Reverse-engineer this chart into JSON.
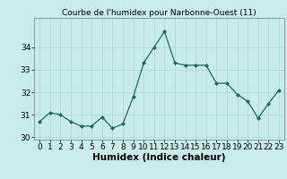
{
  "x": [
    0,
    1,
    2,
    3,
    4,
    5,
    6,
    7,
    8,
    9,
    10,
    11,
    12,
    13,
    14,
    15,
    16,
    17,
    18,
    19,
    20,
    21,
    22,
    23
  ],
  "y": [
    30.7,
    31.1,
    31.0,
    30.7,
    30.5,
    30.5,
    30.9,
    30.4,
    30.6,
    31.8,
    33.3,
    34.0,
    34.7,
    33.3,
    33.2,
    33.2,
    33.2,
    32.4,
    32.4,
    31.9,
    31.6,
    30.85,
    31.5,
    32.1
  ],
  "title": "Courbe de l'humidex pour Narbonne-Ouest (11)",
  "xlabel": "Humidex (Indice chaleur)",
  "ylabel": "",
  "bg_color": "#c8ecea",
  "grid_color": "#a8d8d5",
  "line_color": "#1a6b5a",
  "marker_color": "#1a6b5a",
  "ylim": [
    29.9,
    35.3
  ],
  "yticks": [
    30,
    31,
    32,
    33,
    34
  ],
  "xticks": [
    0,
    1,
    2,
    3,
    4,
    5,
    6,
    7,
    8,
    9,
    10,
    11,
    12,
    13,
    14,
    15,
    16,
    17,
    18,
    19,
    20,
    21,
    22,
    23
  ],
  "title_fontsize": 6.5,
  "axis_fontsize": 7.5,
  "tick_fontsize": 6.5
}
